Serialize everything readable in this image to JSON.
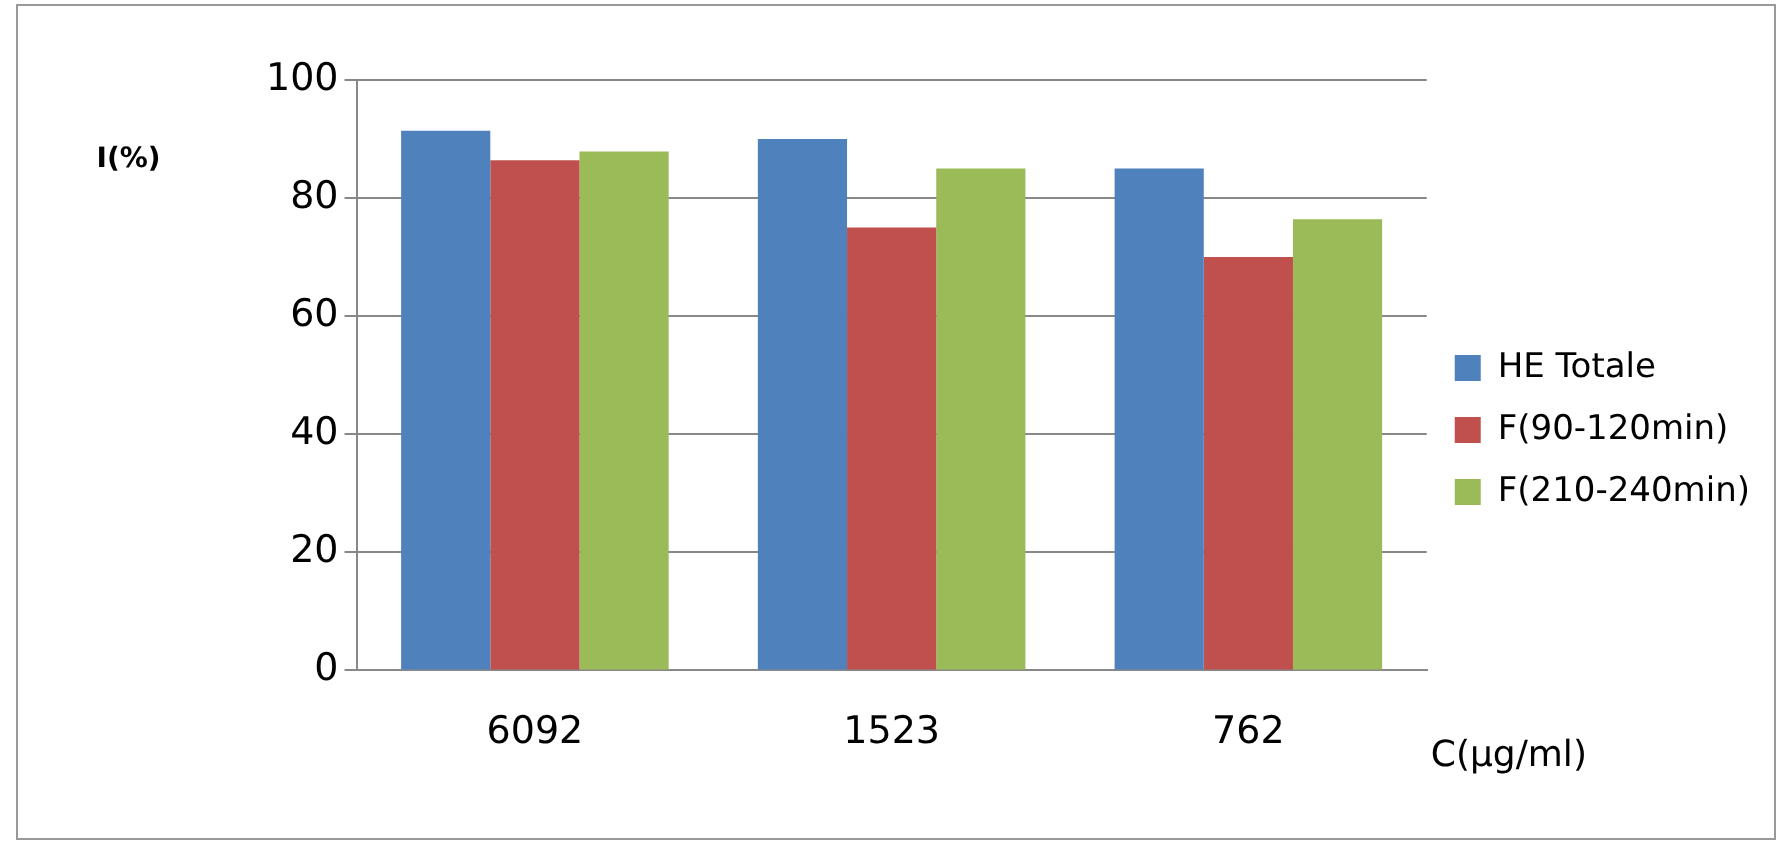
{
  "chart_data": {
    "type": "bar",
    "xlabel": "C(µg/ml)",
    "ylabel": "I(%)",
    "categories": [
      "6092",
      "1523",
      "762"
    ],
    "series": [
      {
        "name": "HE Totale",
        "color": "#4f81bd",
        "values": [
          91.4,
          90,
          85
        ]
      },
      {
        "name": "F(90-120min)",
        "color": "#c0504d",
        "values": [
          86.4,
          75,
          70
        ]
      },
      {
        "name": "F(210-240min)",
        "color": "#9bbb59",
        "values": [
          87.9,
          85,
          76.4
        ]
      }
    ],
    "ylim": [
      0,
      100
    ],
    "yticks": [
      0,
      20,
      40,
      60,
      80,
      100
    ],
    "grid": "y",
    "legend": "right"
  }
}
